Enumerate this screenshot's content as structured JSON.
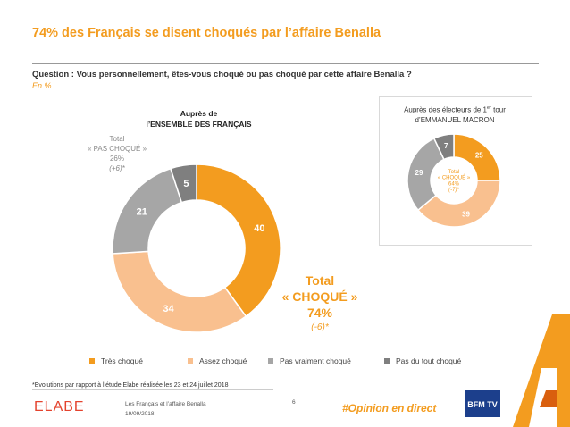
{
  "header": {
    "title": "74% des Français se disent choqués par l’affaire Benalla",
    "question": "Question : Vous personnellement, êtes-vous choqué ou pas choqué par cette affaire Benalla ?",
    "unit": "En %"
  },
  "chart_data": [
    {
      "type": "pie",
      "title": "Auprès de l’ENSEMBLE DES FRANÇAIS",
      "title_lines": [
        "Auprès de",
        "l’ENSEMBLE DES FRANÇAIS"
      ],
      "categories": [
        "Très choqué",
        "Assez choqué",
        "Pas vraiment choqué",
        "Pas du tout choqué"
      ],
      "values": [
        40,
        34,
        21,
        5
      ],
      "colors": [
        "#f39c1f",
        "#f9c08f",
        "#a6a6a6",
        "#7f7f7f"
      ],
      "label_colors": [
        "#ffffff",
        "#ffffff",
        "#ffffff",
        "#ffffff"
      ],
      "annotations": {
        "pas_choque": [
          "Total",
          "« PAS CHOQUÉ »",
          "26%",
          "(+6)*"
        ],
        "choque": [
          "Total",
          "« CHOQUÉ »",
          "74%",
          "(-6)*"
        ]
      }
    },
    {
      "type": "pie",
      "title": "Auprès des électeurs de 1er tour d’EMMANUEL MACRON",
      "title_parts": {
        "line1_a": "Auprès des électeurs de 1",
        "line1_sup": "er",
        "line1_b": " tour",
        "line2": "d’EMMANUEL MACRON"
      },
      "categories": [
        "Très choqué",
        "Assez choqué",
        "Pas vraiment choqué",
        "Pas du tout choqué"
      ],
      "values": [
        25,
        39,
        29,
        7
      ],
      "colors": [
        "#f39c1f",
        "#f9c08f",
        "#a6a6a6",
        "#7f7f7f"
      ],
      "label_colors": [
        "#ffffff",
        "#ffffff",
        "#ffffff",
        "#ffffff"
      ],
      "center_text": [
        "Total",
        "« CHOQUÉ »",
        "64%",
        "(-7)*"
      ]
    }
  ],
  "legend": {
    "items": [
      {
        "label": "Très choqué",
        "color": "#f39c1f"
      },
      {
        "label": "Assez choqué",
        "color": "#f9c08f"
      },
      {
        "label": "Pas vraiment choqué",
        "color": "#a6a6a6"
      },
      {
        "label": "Pas du tout choqué",
        "color": "#7f7f7f"
      }
    ]
  },
  "footer": {
    "footnote": "*Evolutions par rapport à l’étude Elabe réalisée les 23 et 24 juillet 2018",
    "doc_title": "Les Français et l’affaire Benalla",
    "date": "19/09/2018",
    "page_number": "6",
    "hashtag": "#Opinion en direct",
    "logo_elabe": "ELABE",
    "logo_bfm": "BFM TV"
  }
}
